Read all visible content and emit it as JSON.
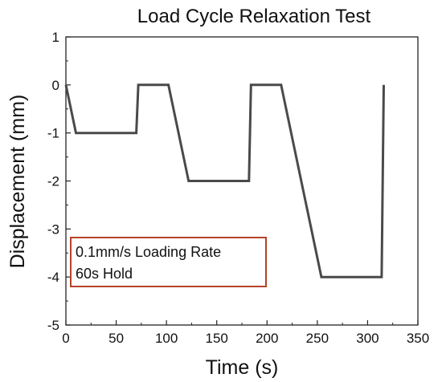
{
  "chart_data": {
    "type": "line",
    "title": "Load Cycle Relaxation Test",
    "xlabel": "Time (s)",
    "ylabel": "Displacement (mm)",
    "xlim": [
      0,
      350
    ],
    "ylim": [
      -5,
      1
    ],
    "xticks": [
      "0",
      "50",
      "100",
      "150",
      "200",
      "250",
      "300",
      "350"
    ],
    "yticks": [
      "1",
      "0",
      "-1",
      "-2",
      "-3",
      "-4",
      "-5"
    ],
    "grid": false,
    "series": [
      {
        "x": [
          0,
          10,
          70,
          72,
          102,
          122,
          182,
          184,
          214,
          254,
          314,
          316
        ],
        "y": [
          0,
          -1,
          -1,
          0,
          0,
          -2,
          -2,
          0,
          0,
          -4,
          -4,
          0
        ]
      }
    ],
    "annotation": {
      "lines": [
        "0.1mm/s Loading Rate",
        "60s Hold"
      ]
    },
    "colors": {
      "line": "#4a4a4a",
      "annotation_border": "#b5432a",
      "axis": "#222222"
    }
  }
}
